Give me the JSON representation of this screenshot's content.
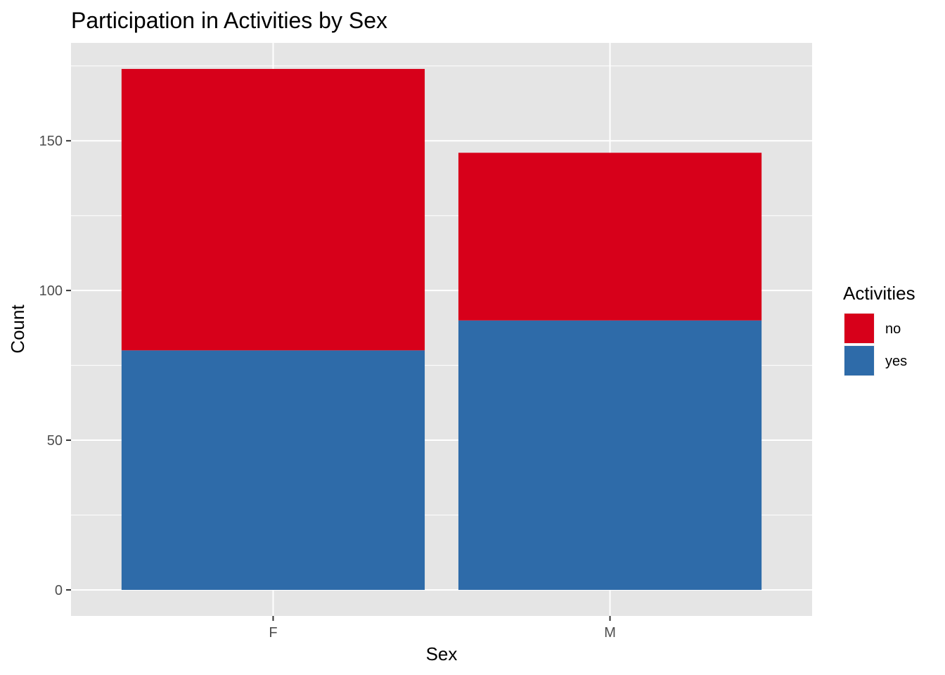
{
  "chart_data": {
    "type": "bar",
    "stacked": true,
    "title": "Participation in Activities by Sex",
    "xlabel": "Sex",
    "ylabel": "Count",
    "categories": [
      "F",
      "M"
    ],
    "series": [
      {
        "name": "no",
        "values": [
          94,
          56
        ],
        "color": "#D7001A"
      },
      {
        "name": "yes",
        "values": [
          80,
          90
        ],
        "color": "#2E6BA9"
      }
    ],
    "totals": [
      174,
      146
    ],
    "ylim": [
      -8.7,
      182.7
    ],
    "yticks": [
      0,
      50,
      100,
      150
    ],
    "ytick_labels": [
      "0",
      "50",
      "100",
      "150"
    ],
    "legend": {
      "title": "Activities",
      "position": "right",
      "entries": [
        "no",
        "yes"
      ]
    },
    "grid": true,
    "panel_background": "#E5E5E5",
    "grid_color": "#FFFFFF"
  }
}
